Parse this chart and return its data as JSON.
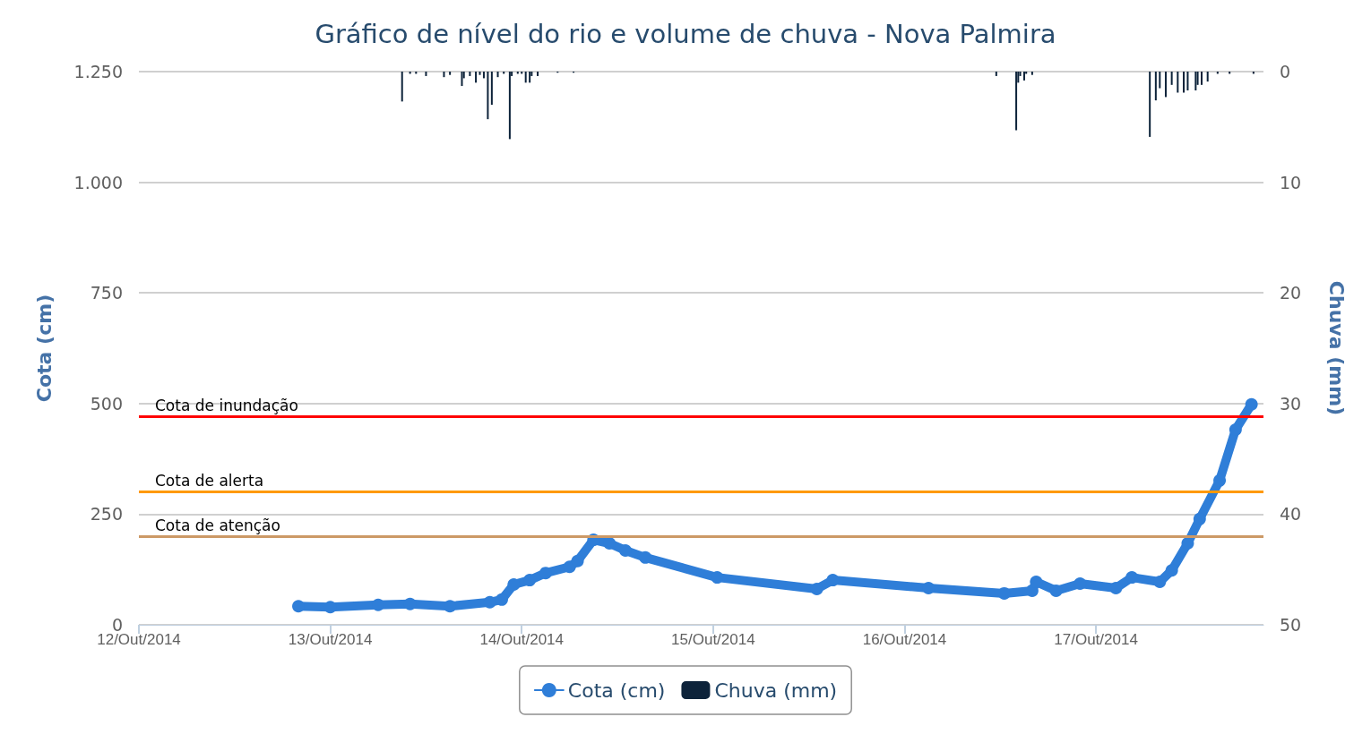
{
  "chart_data": {
    "type": "line",
    "title": "Gráfico de nível do rio e volume de chuva - Nova Palmira",
    "ylabel": "Cota (cm)",
    "y2label": "Chuva (mm)",
    "xlim": [
      "2014-10-12",
      "2014-10-17T21:00"
    ],
    "xticks": [
      {
        "value": "2014-10-12",
        "label": "12/Out/2014"
      },
      {
        "value": "2014-10-13",
        "label": "13/Out/2014"
      },
      {
        "value": "2014-10-14",
        "label": "14/Out/2014"
      },
      {
        "value": "2014-10-15",
        "label": "15/Out/2014"
      },
      {
        "value": "2014-10-16",
        "label": "16/Out/2014"
      },
      {
        "value": "2014-10-17",
        "label": "17/Out/2014"
      }
    ],
    "ylim": [
      0,
      1250
    ],
    "yticks": [
      0,
      250,
      500,
      750,
      {
        "value": 1000,
        "label": "1.000"
      },
      {
        "value": 1250,
        "label": "1.250"
      }
    ],
    "y2lim": [
      50,
      0
    ],
    "y2ticks": [
      0,
      10,
      20,
      30,
      40,
      50
    ],
    "series": [
      {
        "name": "Cota (cm)",
        "color": "#2f7ed8",
        "x": [
          "2014-10-12T20:00",
          "2014-10-13T00:00",
          "2014-10-13T06:00",
          "2014-10-13T10:00",
          "2014-10-13T15:00",
          "2014-10-13T20:00",
          "2014-10-13T21:30",
          "2014-10-13T23:00",
          "2014-10-14T01:00",
          "2014-10-14T03:00",
          "2014-10-14T06:00",
          "2014-10-14T07:00",
          "2014-10-14T09:00",
          "2014-10-14T11:00",
          "2014-10-14T13:00",
          "2014-10-14T15:30",
          "2014-10-15T00:30",
          "2014-10-15T13:00",
          "2014-10-15T15:00",
          "2014-10-16T03:00",
          "2014-10-16T12:30",
          "2014-10-16T16:00",
          "2014-10-16T16:30",
          "2014-10-16T19:00",
          "2014-10-16T22:00",
          "2014-10-17T02:30",
          "2014-10-17T04:30",
          "2014-10-17T08:00",
          "2014-10-17T09:30",
          "2014-10-17T11:30",
          "2014-10-17T13:00",
          "2014-10-17T15:30",
          "2014-10-17T17:30",
          "2014-10-17T19:30"
        ],
        "values": [
          42,
          40,
          45,
          47,
          42,
          51,
          57,
          91,
          101,
          117,
          131,
          144,
          192,
          184,
          168,
          152,
          107,
          81,
          101,
          83,
          71,
          77,
          97,
          77,
          93,
          83,
          107,
          97,
          123,
          184,
          239,
          326,
          441,
          498
        ]
      },
      {
        "name": "Chuva (mm)",
        "type": "bar",
        "axis": "y2",
        "color": "#0d233a",
        "x": [
          "2014-10-13T09:00",
          "2014-10-13T10:00",
          "2014-10-13T10:45",
          "2014-10-13T12:00",
          "2014-10-13T14:15",
          "2014-10-13T15:00",
          "2014-10-13T16:30",
          "2014-10-13T16:45",
          "2014-10-13T17:30",
          "2014-10-13T18:15",
          "2014-10-13T18:45",
          "2014-10-13T19:15",
          "2014-10-13T19:45",
          "2014-10-13T20:15",
          "2014-10-13T21:00",
          "2014-10-13T21:45",
          "2014-10-13T22:30",
          "2014-10-13T22:45",
          "2014-10-13T23:30",
          "2014-10-14T00:00",
          "2014-10-14T00:30",
          "2014-10-14T01:00",
          "2014-10-14T01:15",
          "2014-10-14T02:00",
          "2014-10-14T04:30",
          "2014-10-14T06:30",
          "2014-10-16T11:30",
          "2014-10-16T14:00",
          "2014-10-16T14:15",
          "2014-10-16T14:30",
          "2014-10-16T15:00",
          "2014-10-16T15:15",
          "2014-10-16T16:00",
          "2014-10-17T06:45",
          "2014-10-17T07:30",
          "2014-10-17T08:00",
          "2014-10-17T08:45",
          "2014-10-17T09:30",
          "2014-10-17T10:15",
          "2014-10-17T11:00",
          "2014-10-17T11:30",
          "2014-10-17T12:30",
          "2014-10-17T12:45",
          "2014-10-17T13:15",
          "2014-10-17T14:00",
          "2014-10-17T15:15",
          "2014-10-17T16:45",
          "2014-10-17T19:45"
        ],
        "values": [
          2.7,
          0.2,
          0.2,
          0.4,
          0.5,
          0.3,
          1.3,
          0.6,
          0.4,
          1.0,
          0.3,
          0.6,
          4.3,
          3.0,
          0.5,
          0.2,
          6.1,
          0.4,
          0.2,
          0.2,
          1.0,
          1.0,
          0.4,
          0.4,
          0.1,
          0.1,
          0.4,
          5.3,
          1.0,
          0.4,
          0.8,
          0.2,
          0.3,
          5.9,
          2.6,
          1.5,
          2.3,
          1.2,
          1.9,
          1.9,
          1.7,
          1.7,
          1.2,
          1.2,
          0.9,
          0.2,
          0.2,
          0.2
        ]
      }
    ],
    "ref_lines": [
      {
        "axis": "y",
        "value": 470,
        "label": "Cota de inundação",
        "color": "#ff0000"
      },
      {
        "axis": "y",
        "value": 300,
        "label": "Cota de alerta",
        "color": "#ff9900"
      },
      {
        "axis": "y",
        "value": 200,
        "label": "Cota de atenção",
        "color": "#cc9966"
      }
    ],
    "grid": "y",
    "legend": "bottom",
    "marker": "circle",
    "line_style": "solid"
  }
}
